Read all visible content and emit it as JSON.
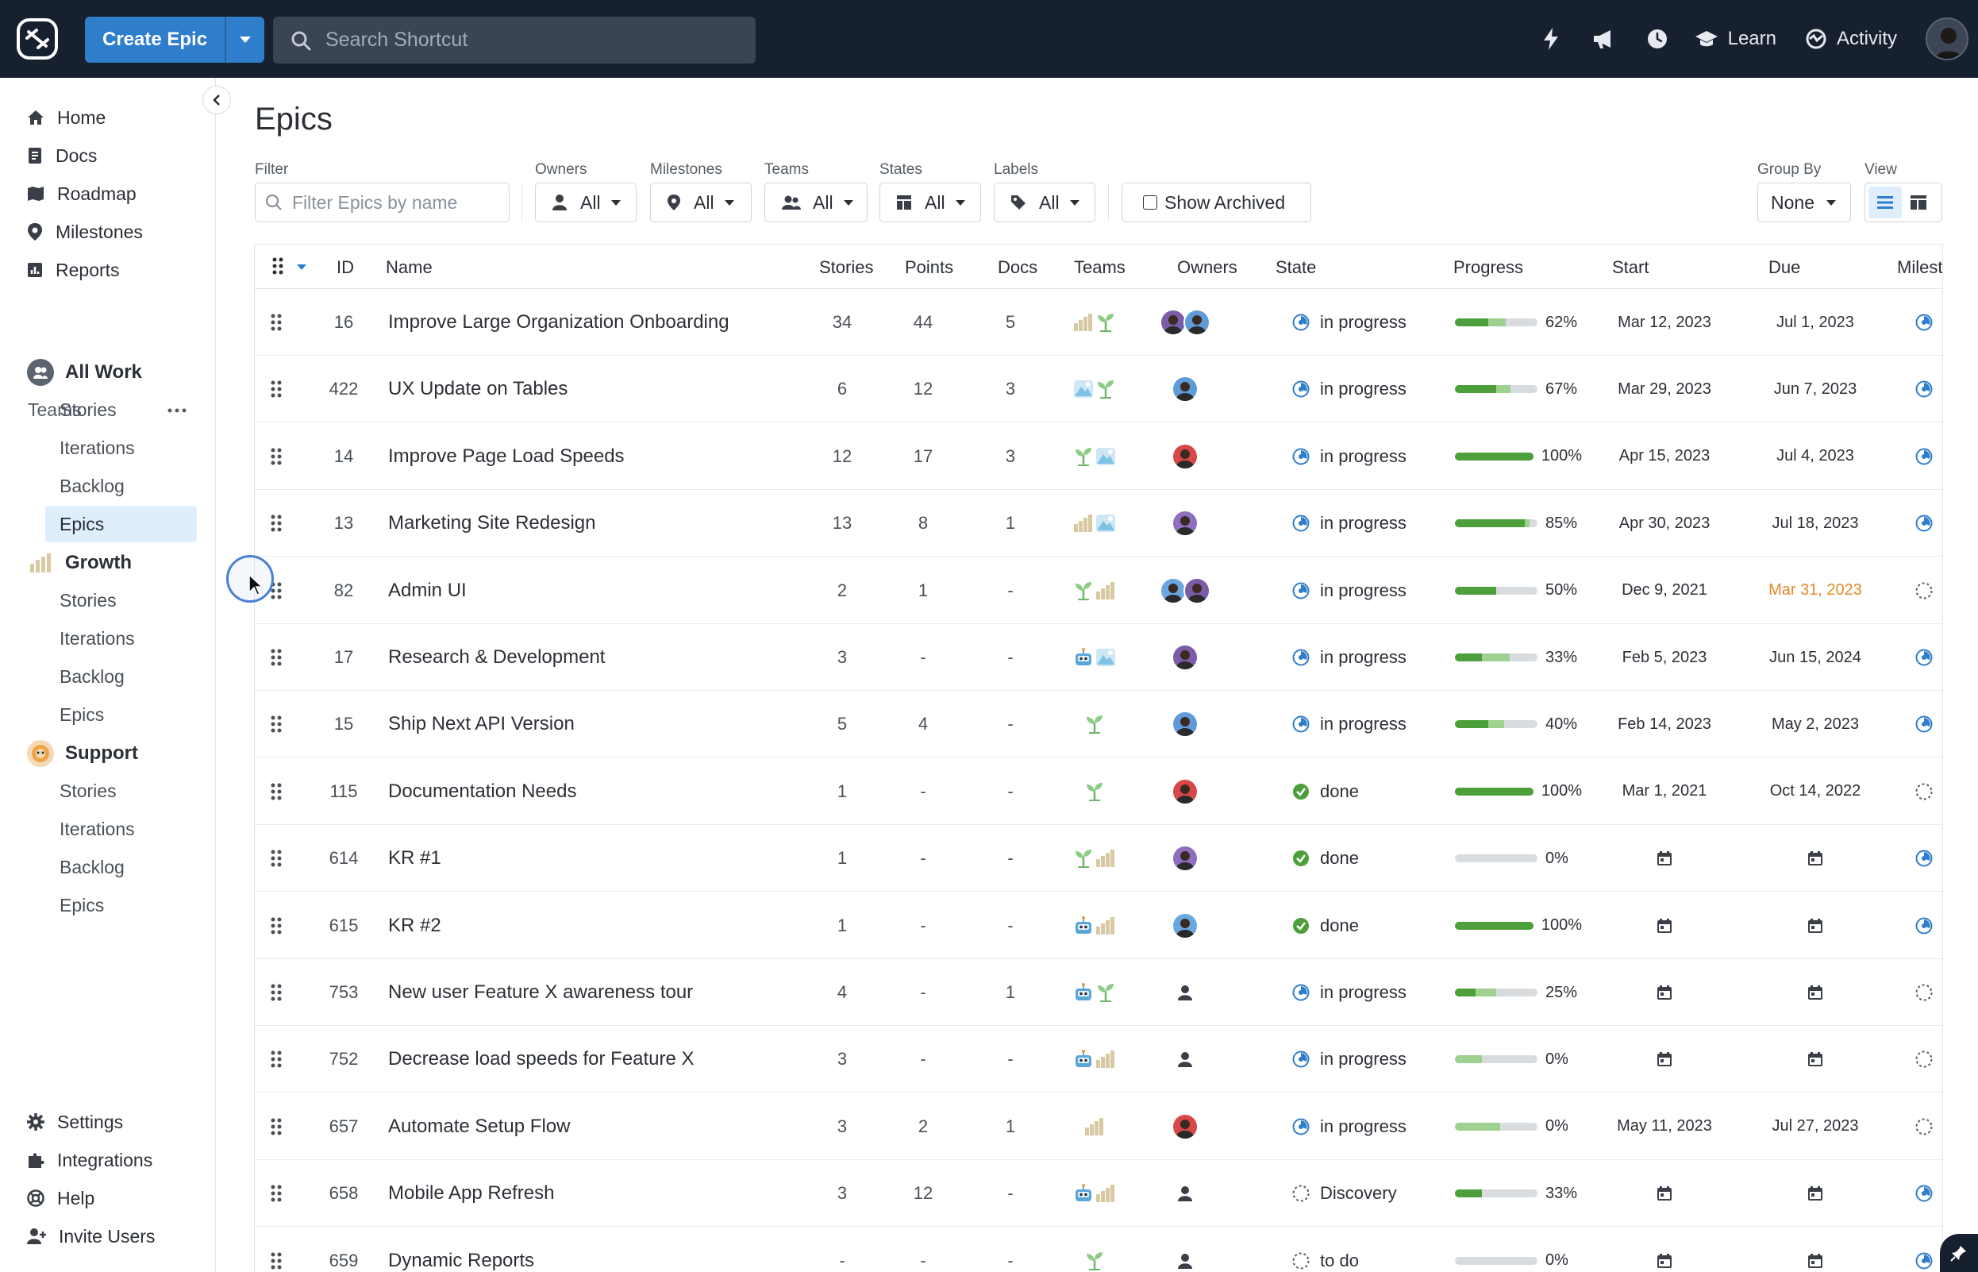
{
  "topbar": {
    "create_label": "Create Epic",
    "search_placeholder": "Search Shortcut",
    "learn_label": "Learn",
    "activity_label": "Activity",
    "icons": [
      "lightning-icon",
      "megaphone-icon",
      "clock-icon"
    ]
  },
  "sidebar": {
    "nav": [
      {
        "label": "Home",
        "icon": "home-icon"
      },
      {
        "label": "Docs",
        "icon": "docs-icon"
      },
      {
        "label": "Roadmap",
        "icon": "roadmap-icon"
      },
      {
        "label": "Milestones",
        "icon": "milestone-icon"
      },
      {
        "label": "Reports",
        "icon": "reports-icon"
      }
    ],
    "teams_label": "Teams",
    "teams": [
      {
        "name": "All Work",
        "items": [
          "Stories",
          "Iterations",
          "Backlog",
          "Epics"
        ],
        "active": "Epics"
      },
      {
        "name": "Growth",
        "items": [
          "Stories",
          "Iterations",
          "Backlog",
          "Epics"
        ]
      },
      {
        "name": "Support",
        "items": [
          "Stories",
          "Iterations",
          "Backlog",
          "Epics"
        ]
      }
    ],
    "bottom": [
      {
        "label": "Settings",
        "icon": "gear-icon"
      },
      {
        "label": "Integrations",
        "icon": "puzzle-icon"
      },
      {
        "label": "Help",
        "icon": "help-icon"
      },
      {
        "label": "Invite Users",
        "icon": "add-user-icon"
      }
    ]
  },
  "page": {
    "title": "Epics",
    "filter_label": "Filter",
    "filter_placeholder": "Filter Epics by name",
    "owners_label": "Owners",
    "owners_value": "All",
    "milestones_label": "Milestones",
    "milestones_value": "All",
    "teams_label": "Teams",
    "teams_value": "All",
    "states_label": "States",
    "states_value": "All",
    "labels_label": "Labels",
    "labels_value": "All",
    "show_archived": "Show Archived",
    "group_by_label": "Group By",
    "group_by_value": "None",
    "view_label": "View"
  },
  "table": {
    "columns": [
      "ID",
      "Name",
      "Stories",
      "Points",
      "Docs",
      "Teams",
      "Owners",
      "State",
      "Progress",
      "Start",
      "Due",
      "Milest"
    ],
    "colors": {
      "in_progress_bar": "#9ed08f",
      "done_bar": "#4d9f3b",
      "state_progress": "#2f7ecb",
      "state_done": "#4d9f3b",
      "overdue": "#e48a2a"
    },
    "rows": [
      {
        "id": "16",
        "name": "Improve Large Organization Onboarding",
        "stories": "34",
        "points": "44",
        "docs": "5",
        "teams": [
          "growth",
          "support-plant"
        ],
        "owners": 2,
        "state": "in progress",
        "state_type": "progress",
        "done": 40,
        "inprog": 22,
        "pct": "62%",
        "start": "Mar 12, 2023",
        "due": "Jul 1, 2023",
        "due_overdue": false,
        "milestone": "progress"
      },
      {
        "id": "422",
        "name": "UX Update on Tables",
        "stories": "6",
        "points": "12",
        "docs": "3",
        "teams": [
          "mountain",
          "support-plant"
        ],
        "owners": 1,
        "state": "in progress",
        "state_type": "progress",
        "done": 50,
        "inprog": 17,
        "pct": "67%",
        "start": "Mar 29, 2023",
        "due": "Jun 7, 2023",
        "due_overdue": false,
        "milestone": "progress"
      },
      {
        "id": "14",
        "name": "Improve Page Load Speeds",
        "stories": "12",
        "points": "17",
        "docs": "3",
        "teams": [
          "support-plant",
          "mountain"
        ],
        "owners": 1,
        "state": "in progress",
        "state_type": "progress",
        "done": 100,
        "inprog": 0,
        "pct": "100%",
        "start": "Apr 15, 2023",
        "due": "Jul 4, 2023",
        "due_overdue": false,
        "milestone": "progress"
      },
      {
        "id": "13",
        "name": "Marketing Site Redesign",
        "stories": "13",
        "points": "8",
        "docs": "1",
        "teams": [
          "growth",
          "mountain"
        ],
        "owners": 1,
        "state": "in progress",
        "state_type": "progress",
        "done": 85,
        "inprog": 5,
        "pct": "85%",
        "start": "Apr 30, 2023",
        "due": "Jul 18, 2023",
        "due_overdue": false,
        "milestone": "progress"
      },
      {
        "id": "82",
        "name": "Admin UI",
        "stories": "2",
        "points": "1",
        "docs": "-",
        "teams": [
          "support-plant",
          "growth"
        ],
        "owners": 2,
        "state": "in progress",
        "state_type": "progress",
        "done": 50,
        "inprog": 0,
        "pct": "50%",
        "start": "Dec 9, 2021",
        "due": "Mar 31, 2023",
        "due_overdue": true,
        "milestone": "none"
      },
      {
        "id": "17",
        "name": "Research & Development",
        "stories": "3",
        "points": "-",
        "docs": "-",
        "teams": [
          "robot",
          "mountain"
        ],
        "owners": 1,
        "state": "in progress",
        "state_type": "progress",
        "done": 33,
        "inprog": 33,
        "pct": "33%",
        "start": "Feb 5, 2023",
        "due": "Jun 15, 2024",
        "due_overdue": false,
        "milestone": "progress"
      },
      {
        "id": "15",
        "name": "Ship Next API Version",
        "stories": "5",
        "points": "4",
        "docs": "-",
        "teams": [
          "support-plant"
        ],
        "owners": 1,
        "state": "in progress",
        "state_type": "progress",
        "done": 40,
        "inprog": 20,
        "pct": "40%",
        "start": "Feb 14, 2023",
        "due": "May 2, 2023",
        "due_overdue": false,
        "milestone": "progress"
      },
      {
        "id": "115",
        "name": "Documentation Needs",
        "stories": "1",
        "points": "-",
        "docs": "-",
        "teams": [
          "support-plant"
        ],
        "owners": 1,
        "state": "done",
        "state_type": "done",
        "done": 100,
        "inprog": 0,
        "pct": "100%",
        "start": "Mar 1, 2021",
        "due": "Oct 14, 2022",
        "due_overdue": false,
        "milestone": "none"
      },
      {
        "id": "614",
        "name": "KR #1",
        "stories": "1",
        "points": "-",
        "docs": "-",
        "teams": [
          "support-plant",
          "growth"
        ],
        "owners": 1,
        "state": "done",
        "state_type": "done",
        "done": 0,
        "inprog": 0,
        "pct": "0%",
        "start": "",
        "due": "",
        "due_overdue": false,
        "milestone": "progress"
      },
      {
        "id": "615",
        "name": "KR #2",
        "stories": "1",
        "points": "-",
        "docs": "-",
        "teams": [
          "robot",
          "growth"
        ],
        "owners": 1,
        "state": "done",
        "state_type": "done",
        "done": 100,
        "inprog": 0,
        "pct": "100%",
        "start": "",
        "due": "",
        "due_overdue": false,
        "milestone": "progress"
      },
      {
        "id": "753",
        "name": "New user Feature X awareness tour",
        "stories": "4",
        "points": "-",
        "docs": "1",
        "teams": [
          "robot",
          "support-plant"
        ],
        "owners": 0,
        "state": "in progress",
        "state_type": "progress",
        "done": 25,
        "inprog": 25,
        "pct": "25%",
        "start": "",
        "due": "",
        "due_overdue": false,
        "milestone": "none"
      },
      {
        "id": "752",
        "name": "Decrease load speeds for Feature X",
        "stories": "3",
        "points": "-",
        "docs": "-",
        "teams": [
          "robot",
          "growth"
        ],
        "owners": 0,
        "state": "in progress",
        "state_type": "progress",
        "done": 0,
        "inprog": 33,
        "pct": "0%",
        "start": "",
        "due": "",
        "due_overdue": false,
        "milestone": "none"
      },
      {
        "id": "657",
        "name": "Automate Setup Flow",
        "stories": "3",
        "points": "2",
        "docs": "1",
        "teams": [
          "growth"
        ],
        "owners": 1,
        "state": "in progress",
        "state_type": "progress",
        "done": 0,
        "inprog": 55,
        "pct": "0%",
        "start": "May 11, 2023",
        "due": "Jul 27, 2023",
        "due_overdue": false,
        "milestone": "none"
      },
      {
        "id": "658",
        "name": "Mobile App Refresh",
        "stories": "3",
        "points": "12",
        "docs": "-",
        "teams": [
          "robot",
          "growth"
        ],
        "owners": 0,
        "state": "Discovery",
        "state_type": "todo",
        "done": 33,
        "inprog": 0,
        "pct": "33%",
        "start": "",
        "due": "",
        "due_overdue": false,
        "milestone": "progress"
      },
      {
        "id": "659",
        "name": "Dynamic Reports",
        "stories": "-",
        "points": "-",
        "docs": "-",
        "teams": [
          "support-plant"
        ],
        "owners": 0,
        "state": "to do",
        "state_type": "todo",
        "done": 0,
        "inprog": 0,
        "pct": "0%",
        "start": "",
        "due": "",
        "due_overdue": false,
        "milestone": "progress"
      }
    ]
  }
}
